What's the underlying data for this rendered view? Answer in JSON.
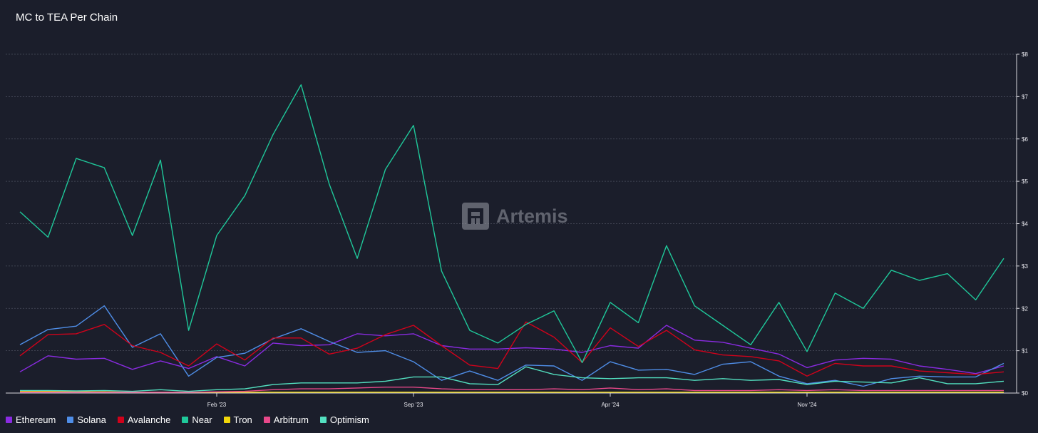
{
  "chart_data": {
    "type": "line",
    "title": "MC to TEA Per Chain",
    "watermark": "Artemis",
    "xlabel": "",
    "ylabel": "",
    "ylim": [
      0,
      8
    ],
    "y_ticks": [
      "$0",
      "$1",
      "$2",
      "$3",
      "$4",
      "$5",
      "$6",
      "$7",
      "$8"
    ],
    "x_ticks": [
      "Feb '23",
      "Sep '23",
      "Apr '24",
      "Nov '24"
    ],
    "x_tick_positions": [
      7,
      14,
      21,
      28
    ],
    "grid": "horizontal",
    "legend_placement": "bottom-left",
    "x_count": 36,
    "series": [
      {
        "name": "Ethereum",
        "color": "#8a2be2",
        "values": [
          0.5,
          0.88,
          0.8,
          0.82,
          0.56,
          0.76,
          0.58,
          0.86,
          0.64,
          1.18,
          1.12,
          1.14,
          1.4,
          1.35,
          1.4,
          1.12,
          1.04,
          1.04,
          1.07,
          1.04,
          0.96,
          1.12,
          1.06,
          1.6,
          1.25,
          1.2,
          1.06,
          0.92,
          0.6,
          0.78,
          0.82,
          0.8,
          0.64,
          0.56,
          0.46,
          0.64
        ]
      },
      {
        "name": "Solana",
        "color": "#4f8ee8",
        "values": [
          1.14,
          1.5,
          1.58,
          2.06,
          1.08,
          1.4,
          0.4,
          0.84,
          0.94,
          1.28,
          1.52,
          1.22,
          0.96,
          1.0,
          0.74,
          0.3,
          0.52,
          0.3,
          0.66,
          0.64,
          0.3,
          0.74,
          0.54,
          0.56,
          0.44,
          0.68,
          0.74,
          0.4,
          0.22,
          0.3,
          0.16,
          0.34,
          0.4,
          0.38,
          0.38,
          0.7
        ]
      },
      {
        "name": "Avalanche",
        "color": "#d0021b",
        "values": [
          0.88,
          1.38,
          1.4,
          1.62,
          1.12,
          0.96,
          0.64,
          1.16,
          0.78,
          1.3,
          1.3,
          0.92,
          1.06,
          1.38,
          1.6,
          1.12,
          0.66,
          0.58,
          1.68,
          1.32,
          0.72,
          1.54,
          1.1,
          1.48,
          1.02,
          0.9,
          0.86,
          0.76,
          0.4,
          0.7,
          0.64,
          0.64,
          0.52,
          0.48,
          0.44,
          0.5
        ]
      },
      {
        "name": "Near",
        "color": "#1fc89a",
        "values": [
          4.28,
          3.68,
          5.54,
          5.32,
          3.72,
          5.5,
          1.48,
          3.72,
          4.66,
          6.1,
          7.28,
          4.94,
          3.18,
          5.28,
          6.32,
          2.88,
          1.48,
          1.18,
          1.62,
          1.94,
          0.72,
          2.14,
          1.66,
          3.48,
          2.06,
          1.6,
          1.14,
          2.14,
          0.98,
          2.36,
          2.0,
          2.9,
          2.66,
          2.82,
          2.2,
          3.18
        ]
      },
      {
        "name": "Tron",
        "color": "#f2d70a",
        "values": [
          0.04,
          0.04,
          0.03,
          0.03,
          0.02,
          0.02,
          0.02,
          0.02,
          0.02,
          0.02,
          0.02,
          0.02,
          0.02,
          0.02,
          0.02,
          0.02,
          0.02,
          0.02,
          0.02,
          0.02,
          0.02,
          0.02,
          0.02,
          0.02,
          0.02,
          0.02,
          0.02,
          0.02,
          0.02,
          0.02,
          0.02,
          0.02,
          0.02,
          0.02,
          0.02,
          0.02
        ]
      },
      {
        "name": "Arbitrum",
        "color": "#e8488a",
        "values": [
          0.02,
          0.02,
          0.02,
          0.02,
          0.02,
          0.02,
          0.02,
          0.03,
          0.04,
          0.08,
          0.1,
          0.1,
          0.12,
          0.14,
          0.14,
          0.1,
          0.08,
          0.08,
          0.08,
          0.1,
          0.08,
          0.12,
          0.08,
          0.1,
          0.06,
          0.06,
          0.06,
          0.08,
          0.06,
          0.08,
          0.06,
          0.06,
          0.06,
          0.06,
          0.06,
          0.06
        ]
      },
      {
        "name": "Optimism",
        "color": "#53e0c0",
        "values": [
          0.06,
          0.06,
          0.05,
          0.06,
          0.04,
          0.08,
          0.04,
          0.08,
          0.1,
          0.2,
          0.24,
          0.24,
          0.24,
          0.28,
          0.38,
          0.38,
          0.22,
          0.2,
          0.62,
          0.44,
          0.36,
          0.34,
          0.36,
          0.36,
          0.3,
          0.34,
          0.3,
          0.32,
          0.2,
          0.28,
          0.26,
          0.24,
          0.36,
          0.22,
          0.22,
          0.28
        ]
      }
    ]
  }
}
